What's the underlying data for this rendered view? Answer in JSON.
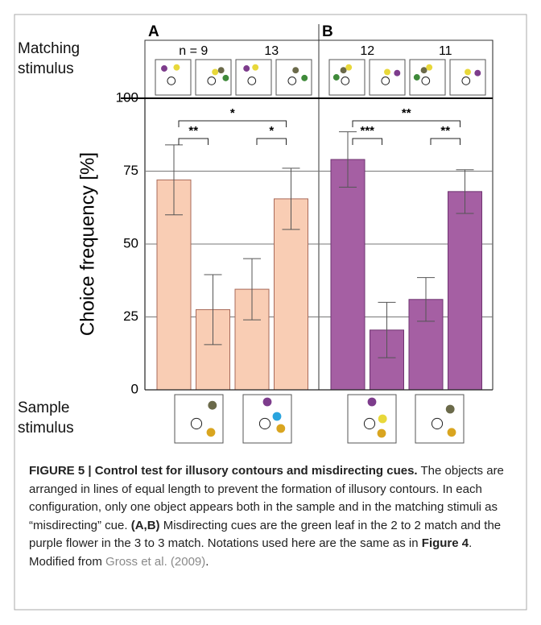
{
  "row_labels": {
    "top": "Matching stimulus",
    "bottom": "Sample stimulus"
  },
  "chart_data": [
    {
      "type": "bar",
      "title": "A",
      "ylabel": "Choice frequency [%]",
      "categories": [
        null,
        null,
        null,
        null
      ],
      "values": [
        72,
        27.5,
        34.5,
        65.5
      ],
      "errors": [
        12,
        12,
        10.5,
        10.5
      ],
      "color": "#f9cdb4",
      "edge_color": "#a86a5a",
      "group_labels": [
        "n = 9",
        "13"
      ],
      "significance": [
        "*",
        "**",
        "*"
      ],
      "ylim": [
        0,
        100
      ],
      "yticks": [
        0,
        25,
        50,
        75,
        100
      ],
      "grid": true
    },
    {
      "type": "bar",
      "title": "B",
      "categories": [
        null,
        null,
        null,
        null
      ],
      "values": [
        79,
        20.5,
        31,
        68
      ],
      "errors": [
        9.5,
        9.5,
        7.5,
        7.5
      ],
      "color": "#a55fa3",
      "edge_color": "#6e3370",
      "group_labels": [
        "12",
        "11"
      ],
      "significance": [
        "**",
        "***",
        "**"
      ],
      "ylim": [
        0,
        100
      ],
      "grid": true
    }
  ],
  "caption": {
    "label": "FIGURE 5 | Control test for illusory contours and misdirecting cues.",
    "text1": "The objects are arranged in lines of equal length to prevent the formation of illusory contours. In each configuration, only one object appears both in the sample and in the matching stimuli as “misdirecting” cue.",
    "ref1": "(A,B)",
    "text2": "Misdirecting cues are the green leaf in the 2 to 2 match and the purple flower in the 3 to 3 match. Notations used here are the same as in",
    "ref2": "Figure 4",
    "text3": ". Modified from",
    "citation": "Gross et al. (2009)",
    "text4": "."
  }
}
